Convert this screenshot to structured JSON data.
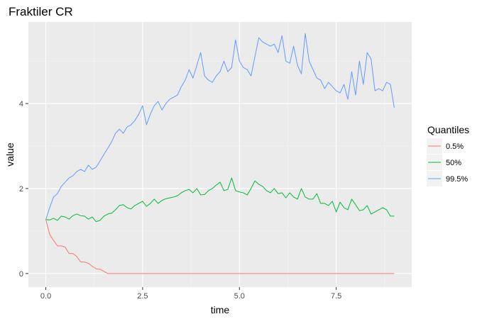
{
  "chart_data": {
    "type": "line",
    "title": "Fraktiler CR",
    "xlabel": "time",
    "ylabel": "value",
    "xlim": [
      -0.45,
      9.45
    ],
    "ylim": [
      -0.32,
      5.92
    ],
    "x_ticks": [
      0,
      2.5,
      5,
      7.5
    ],
    "x_tick_labels": [
      "0.0",
      "2.5",
      "5.0",
      "7.5"
    ],
    "y_ticks": [
      0,
      2,
      4
    ],
    "y_tick_labels": [
      "0",
      "2",
      "4"
    ],
    "grid": true,
    "legend": {
      "title": "Quantiles",
      "placement": "right"
    },
    "series": [
      {
        "name": "0.5%",
        "color": "#F8766D",
        "x": [
          0,
          0.1,
          0.2,
          0.3,
          0.4,
          0.5,
          0.6,
          0.7,
          0.8,
          0.9,
          1.0,
          1.1,
          1.2,
          1.3,
          1.4,
          1.5,
          1.6,
          1.7,
          2.0,
          3.0,
          4.0,
          5.0,
          6.0,
          7.0,
          8.0,
          9.0
        ],
        "y": [
          1.27,
          0.92,
          0.78,
          0.65,
          0.65,
          0.62,
          0.47,
          0.47,
          0.4,
          0.27,
          0.27,
          0.24,
          0.17,
          0.11,
          0.1,
          0.05,
          0.0,
          0.0,
          0.0,
          0.0,
          0.0,
          0.0,
          0.0,
          0.0,
          0.0,
          0.0
        ]
      },
      {
        "name": "50%",
        "color": "#00BA38",
        "x": [
          0,
          0.1,
          0.2,
          0.3,
          0.4,
          0.5,
          0.6,
          0.7,
          0.8,
          0.9,
          1.0,
          1.1,
          1.2,
          1.3,
          1.4,
          1.5,
          1.6,
          1.7,
          1.8,
          1.9,
          2.0,
          2.1,
          2.2,
          2.3,
          2.4,
          2.5,
          2.6,
          2.7,
          2.8,
          2.9,
          3.0,
          3.1,
          3.2,
          3.3,
          3.4,
          3.5,
          3.6,
          3.7,
          3.8,
          3.9,
          4.0,
          4.1,
          4.2,
          4.3,
          4.4,
          4.5,
          4.6,
          4.7,
          4.8,
          4.9,
          5.0,
          5.1,
          5.2,
          5.3,
          5.4,
          5.5,
          5.6,
          5.7,
          5.8,
          5.9,
          6.0,
          6.1,
          6.2,
          6.3,
          6.4,
          6.5,
          6.6,
          6.7,
          6.8,
          6.9,
          7.0,
          7.1,
          7.2,
          7.3,
          7.4,
          7.5,
          7.6,
          7.7,
          7.8,
          7.9,
          8.0,
          8.1,
          8.2,
          8.3,
          8.4,
          8.5,
          8.6,
          8.7,
          8.8,
          8.9,
          9.0
        ],
        "y": [
          1.27,
          1.26,
          1.3,
          1.25,
          1.35,
          1.33,
          1.28,
          1.36,
          1.4,
          1.36,
          1.35,
          1.28,
          1.33,
          1.22,
          1.25,
          1.35,
          1.4,
          1.42,
          1.5,
          1.6,
          1.62,
          1.55,
          1.52,
          1.6,
          1.65,
          1.7,
          1.58,
          1.65,
          1.75,
          1.65,
          1.72,
          1.76,
          1.78,
          1.8,
          1.83,
          1.9,
          1.95,
          1.98,
          1.9,
          2.0,
          1.85,
          1.86,
          1.95,
          2.0,
          2.08,
          2.15,
          1.95,
          1.98,
          2.25,
          1.95,
          1.92,
          1.9,
          1.85,
          2.0,
          2.18,
          2.1,
          2.05,
          1.95,
          1.9,
          2.0,
          1.88,
          1.9,
          1.78,
          1.9,
          1.8,
          1.75,
          2.0,
          1.8,
          1.75,
          1.75,
          1.88,
          1.65,
          1.65,
          1.6,
          1.7,
          1.45,
          1.68,
          1.55,
          1.5,
          1.75,
          1.62,
          1.48,
          1.5,
          1.6,
          1.4,
          1.45,
          1.5,
          1.55,
          1.5,
          1.35,
          1.35
        ]
      },
      {
        "name": "99.5%",
        "color": "#619CFF",
        "x": [
          0,
          0.1,
          0.2,
          0.3,
          0.4,
          0.5,
          0.6,
          0.7,
          0.8,
          0.9,
          1.0,
          1.1,
          1.2,
          1.3,
          1.4,
          1.5,
          1.6,
          1.7,
          1.8,
          1.9,
          2.0,
          2.1,
          2.2,
          2.3,
          2.4,
          2.5,
          2.6,
          2.7,
          2.8,
          2.9,
          3.0,
          3.1,
          3.2,
          3.3,
          3.4,
          3.5,
          3.6,
          3.7,
          3.8,
          3.9,
          4.0,
          4.1,
          4.2,
          4.3,
          4.4,
          4.5,
          4.6,
          4.7,
          4.8,
          4.9,
          5.0,
          5.1,
          5.2,
          5.3,
          5.4,
          5.5,
          5.6,
          5.7,
          5.8,
          5.9,
          6.0,
          6.1,
          6.2,
          6.3,
          6.4,
          6.5,
          6.6,
          6.7,
          6.8,
          6.9,
          7.0,
          7.1,
          7.2,
          7.3,
          7.4,
          7.5,
          7.6,
          7.7,
          7.8,
          7.9,
          8.0,
          8.1,
          8.2,
          8.3,
          8.4,
          8.5,
          8.6,
          8.7,
          8.8,
          8.9,
          9.0
        ],
        "y": [
          1.27,
          1.55,
          1.8,
          1.88,
          2.05,
          2.15,
          2.25,
          2.3,
          2.4,
          2.45,
          2.4,
          2.55,
          2.45,
          2.5,
          2.65,
          2.8,
          2.95,
          3.1,
          3.3,
          3.4,
          3.3,
          3.45,
          3.5,
          3.6,
          3.75,
          3.95,
          3.5,
          3.75,
          3.95,
          4.05,
          3.85,
          4.0,
          4.1,
          4.15,
          4.2,
          4.4,
          4.55,
          4.8,
          4.6,
          4.9,
          5.2,
          4.65,
          4.55,
          4.5,
          4.65,
          4.75,
          5.0,
          4.75,
          4.85,
          5.5,
          5.0,
          4.85,
          4.8,
          4.65,
          5.1,
          5.55,
          5.45,
          5.4,
          5.35,
          5.4,
          5.2,
          5.6,
          5.0,
          4.95,
          5.35,
          4.9,
          4.7,
          5.65,
          5.0,
          4.8,
          4.6,
          4.55,
          4.35,
          4.5,
          4.4,
          4.3,
          4.25,
          4.45,
          4.1,
          4.75,
          4.2,
          5.0,
          4.45,
          5.2,
          5.05,
          4.3,
          4.35,
          4.3,
          4.5,
          4.45,
          3.9
        ]
      }
    ]
  }
}
